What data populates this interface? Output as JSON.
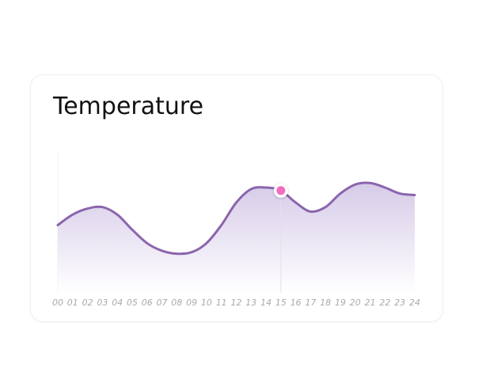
{
  "card": {
    "title": "Temperature"
  },
  "colors": {
    "line": "#8b65ac",
    "fill_top": "#d6cbe8",
    "fill_bottom": "#ffffff",
    "marker": "#f26cc0",
    "guide": "#e3e0ea"
  },
  "chart_data": {
    "type": "area",
    "title": "Temperature",
    "xlabel": "",
    "ylabel": "",
    "x": [
      "00",
      "01",
      "02",
      "03",
      "04",
      "05",
      "06",
      "07",
      "08",
      "09",
      "10",
      "11",
      "12",
      "13",
      "14",
      "15",
      "16",
      "17",
      "18",
      "19",
      "20",
      "21",
      "22",
      "23",
      "24"
    ],
    "values": [
      0.45,
      0.52,
      0.56,
      0.57,
      0.52,
      0.42,
      0.33,
      0.28,
      0.26,
      0.27,
      0.33,
      0.45,
      0.6,
      0.69,
      0.7,
      0.68,
      0.6,
      0.54,
      0.57,
      0.66,
      0.72,
      0.73,
      0.7,
      0.66,
      0.65
    ],
    "ylim": [
      0,
      1
    ],
    "grid": false,
    "legend": "none",
    "highlight_index": 15
  }
}
